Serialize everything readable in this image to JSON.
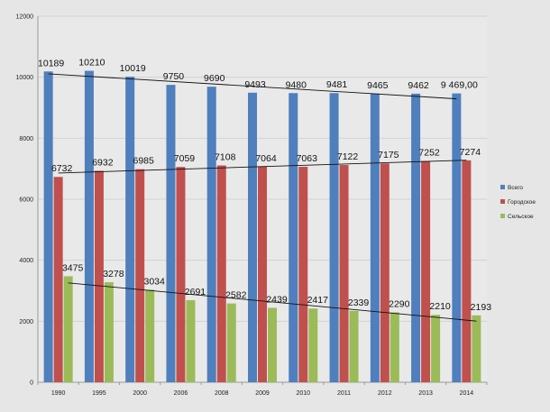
{
  "chart_data": {
    "type": "bar",
    "title": "",
    "xlabel": "",
    "ylabel": "",
    "ylim": [
      0,
      12000
    ],
    "yticks": [
      "0",
      "2000",
      "4000",
      "6000",
      "8000",
      "10000",
      "12000"
    ],
    "grid": true,
    "legend_position": "right",
    "categories": [
      "1990",
      "1995",
      "2000",
      "2006",
      "2008",
      "2009",
      "2010",
      "2011",
      "2012",
      "2013",
      "2014"
    ],
    "series": [
      {
        "name": "Всего",
        "color": "#4f7fbd",
        "values": [
          10189,
          10210,
          10019,
          9750,
          9690,
          9493,
          9480,
          9481,
          9465,
          9462,
          9469
        ],
        "labels": [
          "10189",
          "10210",
          "10019",
          "9750",
          "9690",
          "9493",
          "9480",
          "9481",
          "9465",
          "9462",
          "9 469,00"
        ]
      },
      {
        "name": "Городское",
        "color": "#c0504d",
        "values": [
          6732,
          6932,
          6985,
          7059,
          7108,
          7064,
          7063,
          7122,
          7175,
          7252,
          7274
        ],
        "labels": [
          "6732",
          "6932",
          "6985",
          "7059",
          "7108",
          "7064",
          "7063",
          "7122",
          "7175",
          "7252",
          "7274"
        ]
      },
      {
        "name": "Сельское",
        "color": "#9bbb59",
        "values": [
          3475,
          3278,
          3034,
          2691,
          2582,
          2439,
          2417,
          2339,
          2290,
          2210,
          2193
        ],
        "labels": [
          "3475",
          "3278",
          "3034",
          "2691",
          "2582",
          "2439",
          "2417",
          "2339",
          "2290",
          "2210",
          "2193"
        ]
      }
    ],
    "trendlines": true
  }
}
